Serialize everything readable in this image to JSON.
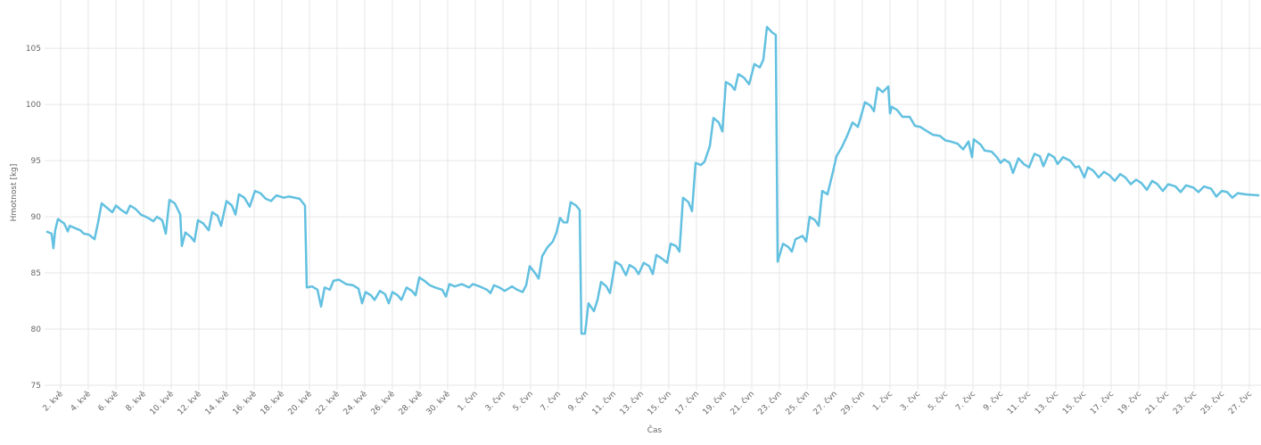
{
  "chart_data": {
    "type": "line",
    "x_label": "Čas",
    "y_label": "Hmotnost [kg]",
    "color": "#62c0e0",
    "grid": true,
    "xlim": [
      0.84,
      88.84
    ],
    "ylim": [
      75,
      109.3
    ],
    "yticks": [
      75,
      80,
      85,
      90,
      95,
      100,
      105
    ],
    "xticks": [
      {
        "value": 2,
        "label": "2. kvě"
      },
      {
        "value": 4,
        "label": "4. kvě"
      },
      {
        "value": 6,
        "label": "6. kvě"
      },
      {
        "value": 8,
        "label": "8. kvě"
      },
      {
        "value": 10,
        "label": "10. kvě"
      },
      {
        "value": 12,
        "label": "12. kvě"
      },
      {
        "value": 14,
        "label": "14. kvě"
      },
      {
        "value": 16,
        "label": "16. kvě"
      },
      {
        "value": 18,
        "label": "18. kvě"
      },
      {
        "value": 20,
        "label": "20. kvě"
      },
      {
        "value": 22,
        "label": "22. kvě"
      },
      {
        "value": 24,
        "label": "24. kvě"
      },
      {
        "value": 26,
        "label": "26. kvě"
      },
      {
        "value": 28,
        "label": "28. kvě"
      },
      {
        "value": 30,
        "label": "30. kvě"
      },
      {
        "value": 32,
        "label": "1. čvn"
      },
      {
        "value": 34,
        "label": "3. čvn"
      },
      {
        "value": 36,
        "label": "5. čvn"
      },
      {
        "value": 38,
        "label": "7. čvn"
      },
      {
        "value": 40,
        "label": "9. čvn"
      },
      {
        "value": 42,
        "label": "11. čvn"
      },
      {
        "value": 44,
        "label": "13. čvn"
      },
      {
        "value": 46,
        "label": "15. čvn"
      },
      {
        "value": 48,
        "label": "17. čvn"
      },
      {
        "value": 50,
        "label": "19. čvn"
      },
      {
        "value": 52,
        "label": "21. čvn"
      },
      {
        "value": 54,
        "label": "23. čvn"
      },
      {
        "value": 56,
        "label": "25. čvn"
      },
      {
        "value": 58,
        "label": "27. čvn"
      },
      {
        "value": 60,
        "label": "29. čvn"
      },
      {
        "value": 62,
        "label": "1. čvc"
      },
      {
        "value": 64,
        "label": "3. čvc"
      },
      {
        "value": 66,
        "label": "5. čvc"
      },
      {
        "value": 68,
        "label": "7. čvc"
      },
      {
        "value": 70,
        "label": "9. čvc"
      },
      {
        "value": 72,
        "label": "11. čvc"
      },
      {
        "value": 74,
        "label": "13. čvc"
      },
      {
        "value": 76,
        "label": "15. čvc"
      },
      {
        "value": 78,
        "label": "17. čvc"
      },
      {
        "value": 80,
        "label": "19. čvc"
      },
      {
        "value": 82,
        "label": "21. čvc"
      },
      {
        "value": 84,
        "label": "23. čvc"
      },
      {
        "value": 86,
        "label": "25. čvc"
      },
      {
        "value": 88,
        "label": "27. čvc"
      }
    ],
    "x": [
      0.97,
      1.35,
      1.48,
      1.61,
      1.81,
      2.26,
      2.52,
      2.65,
      3.03,
      3.42,
      3.68,
      4.06,
      4.45,
      4.71,
      4.97,
      5.35,
      5.74,
      6.0,
      6.39,
      6.77,
      7.03,
      7.42,
      7.81,
      8.32,
      8.71,
      8.97,
      9.35,
      9.61,
      9.87,
      10.26,
      10.65,
      10.77,
      11.03,
      11.42,
      11.68,
      11.94,
      12.32,
      12.71,
      12.97,
      13.35,
      13.61,
      14.0,
      14.39,
      14.65,
      14.9,
      15.29,
      15.68,
      16.06,
      16.45,
      16.84,
      17.23,
      17.61,
      18.13,
      18.52,
      19.29,
      19.68,
      19.81,
      20.19,
      20.58,
      20.84,
      21.1,
      21.48,
      21.74,
      22.13,
      22.65,
      23.16,
      23.55,
      23.81,
      24.06,
      24.45,
      24.71,
      25.1,
      25.48,
      25.74,
      26.0,
      26.39,
      26.65,
      27.03,
      27.42,
      27.68,
      27.94,
      28.32,
      28.71,
      29.1,
      29.61,
      29.87,
      30.13,
      30.52,
      31.03,
      31.55,
      31.81,
      32.32,
      32.84,
      33.1,
      33.35,
      33.74,
      34.13,
      34.65,
      35.03,
      35.42,
      35.68,
      35.94,
      36.32,
      36.58,
      36.84,
      37.23,
      37.61,
      37.87,
      38.13,
      38.39,
      38.65,
      38.9,
      39.29,
      39.55,
      39.68,
      39.94,
      40.19,
      40.58,
      40.84,
      41.1,
      41.48,
      41.74,
      42.13,
      42.52,
      42.9,
      43.16,
      43.55,
      43.81,
      44.19,
      44.58,
      44.84,
      45.1,
      45.48,
      45.87,
      46.13,
      46.52,
      46.77,
      47.03,
      47.42,
      47.68,
      47.94,
      48.32,
      48.58,
      48.97,
      49.23,
      49.61,
      49.87,
      50.13,
      50.52,
      50.77,
      51.03,
      51.42,
      51.81,
      52.19,
      52.58,
      52.84,
      53.1,
      53.48,
      53.74,
      53.87,
      54.26,
      54.65,
      54.9,
      55.16,
      55.68,
      55.94,
      56.19,
      56.58,
      56.84,
      57.1,
      57.48,
      57.87,
      58.13,
      58.52,
      58.9,
      59.29,
      59.68,
      59.94,
      60.19,
      60.58,
      60.84,
      61.1,
      61.48,
      61.87,
      62.0,
      62.13,
      62.52,
      62.9,
      63.42,
      63.81,
      64.19,
      64.71,
      65.1,
      65.61,
      66.0,
      66.39,
      66.9,
      67.29,
      67.68,
      67.94,
      68.06,
      68.58,
      68.84,
      69.35,
      69.74,
      70.0,
      70.26,
      70.65,
      70.9,
      71.29,
      71.68,
      72.06,
      72.45,
      72.84,
      73.1,
      73.48,
      73.87,
      74.13,
      74.52,
      75.03,
      75.42,
      75.68,
      76.06,
      76.32,
      76.71,
      77.1,
      77.48,
      77.87,
      78.26,
      78.65,
      79.03,
      79.42,
      79.81,
      80.19,
      80.58,
      80.97,
      81.35,
      81.74,
      82.13,
      82.65,
      83.03,
      83.42,
      83.94,
      84.32,
      84.71,
      85.23,
      85.61,
      86.0,
      86.39,
      86.77,
      87.16,
      87.68,
      88.71
    ],
    "values": [
      88.7,
      88.5,
      87.2,
      88.8,
      89.8,
      89.4,
      88.7,
      89.2,
      89.0,
      88.8,
      88.5,
      88.4,
      88.0,
      89.5,
      91.2,
      90.8,
      90.4,
      91.0,
      90.6,
      90.3,
      91.0,
      90.7,
      90.2,
      89.9,
      89.6,
      90.0,
      89.7,
      88.5,
      91.5,
      91.2,
      90.2,
      87.4,
      88.6,
      88.2,
      87.8,
      89.7,
      89.4,
      88.8,
      90.4,
      90.1,
      89.2,
      91.4,
      91.0,
      90.2,
      92.0,
      91.7,
      90.9,
      92.3,
      92.1,
      91.6,
      91.4,
      91.9,
      91.7,
      91.8,
      91.6,
      91.0,
      83.7,
      83.8,
      83.5,
      82.0,
      83.7,
      83.5,
      84.3,
      84.4,
      84.0,
      83.9,
      83.6,
      82.3,
      83.3,
      83.0,
      82.6,
      83.4,
      83.1,
      82.3,
      83.3,
      83.0,
      82.6,
      83.7,
      83.4,
      83.0,
      84.6,
      84.3,
      83.9,
      83.7,
      83.5,
      82.9,
      84.0,
      83.8,
      84.0,
      83.7,
      84.0,
      83.8,
      83.5,
      83.2,
      83.9,
      83.7,
      83.4,
      83.8,
      83.5,
      83.3,
      83.9,
      85.6,
      85.0,
      84.5,
      86.5,
      87.3,
      87.8,
      88.6,
      89.9,
      89.5,
      89.5,
      91.3,
      91.0,
      90.6,
      79.6,
      79.6,
      82.3,
      81.6,
      82.6,
      84.2,
      83.8,
      83.2,
      86.0,
      85.7,
      84.8,
      85.7,
      85.4,
      84.9,
      85.9,
      85.6,
      84.9,
      86.6,
      86.3,
      85.9,
      87.6,
      87.4,
      86.9,
      91.7,
      91.3,
      90.5,
      94.8,
      94.6,
      94.9,
      96.3,
      98.8,
      98.4,
      97.6,
      102.0,
      101.7,
      101.3,
      102.7,
      102.4,
      101.8,
      103.6,
      103.3,
      104.0,
      106.9,
      106.4,
      106.2,
      86.0,
      87.6,
      87.3,
      86.9,
      88.0,
      88.3,
      87.8,
      90.0,
      89.7,
      89.2,
      92.3,
      92.0,
      94.0,
      95.4,
      96.2,
      97.2,
      98.4,
      98.0,
      99.1,
      100.2,
      99.9,
      99.4,
      101.5,
      101.1,
      101.6,
      99.2,
      99.8,
      99.5,
      98.9,
      98.9,
      98.1,
      98.0,
      97.6,
      97.3,
      97.2,
      96.8,
      96.7,
      96.5,
      96.0,
      96.7,
      95.3,
      96.9,
      96.4,
      95.9,
      95.8,
      95.3,
      94.8,
      95.1,
      94.8,
      93.9,
      95.2,
      94.7,
      94.4,
      95.6,
      95.4,
      94.5,
      95.6,
      95.3,
      94.7,
      95.3,
      95.0,
      94.4,
      94.5,
      93.5,
      94.4,
      94.1,
      93.5,
      94.0,
      93.7,
      93.2,
      93.8,
      93.5,
      92.9,
      93.3,
      93.0,
      92.4,
      93.2,
      92.9,
      92.3,
      92.9,
      92.7,
      92.2,
      92.8,
      92.6,
      92.2,
      92.7,
      92.5,
      91.8,
      92.3,
      92.2,
      91.7,
      92.1,
      92.0,
      91.9
    ]
  }
}
